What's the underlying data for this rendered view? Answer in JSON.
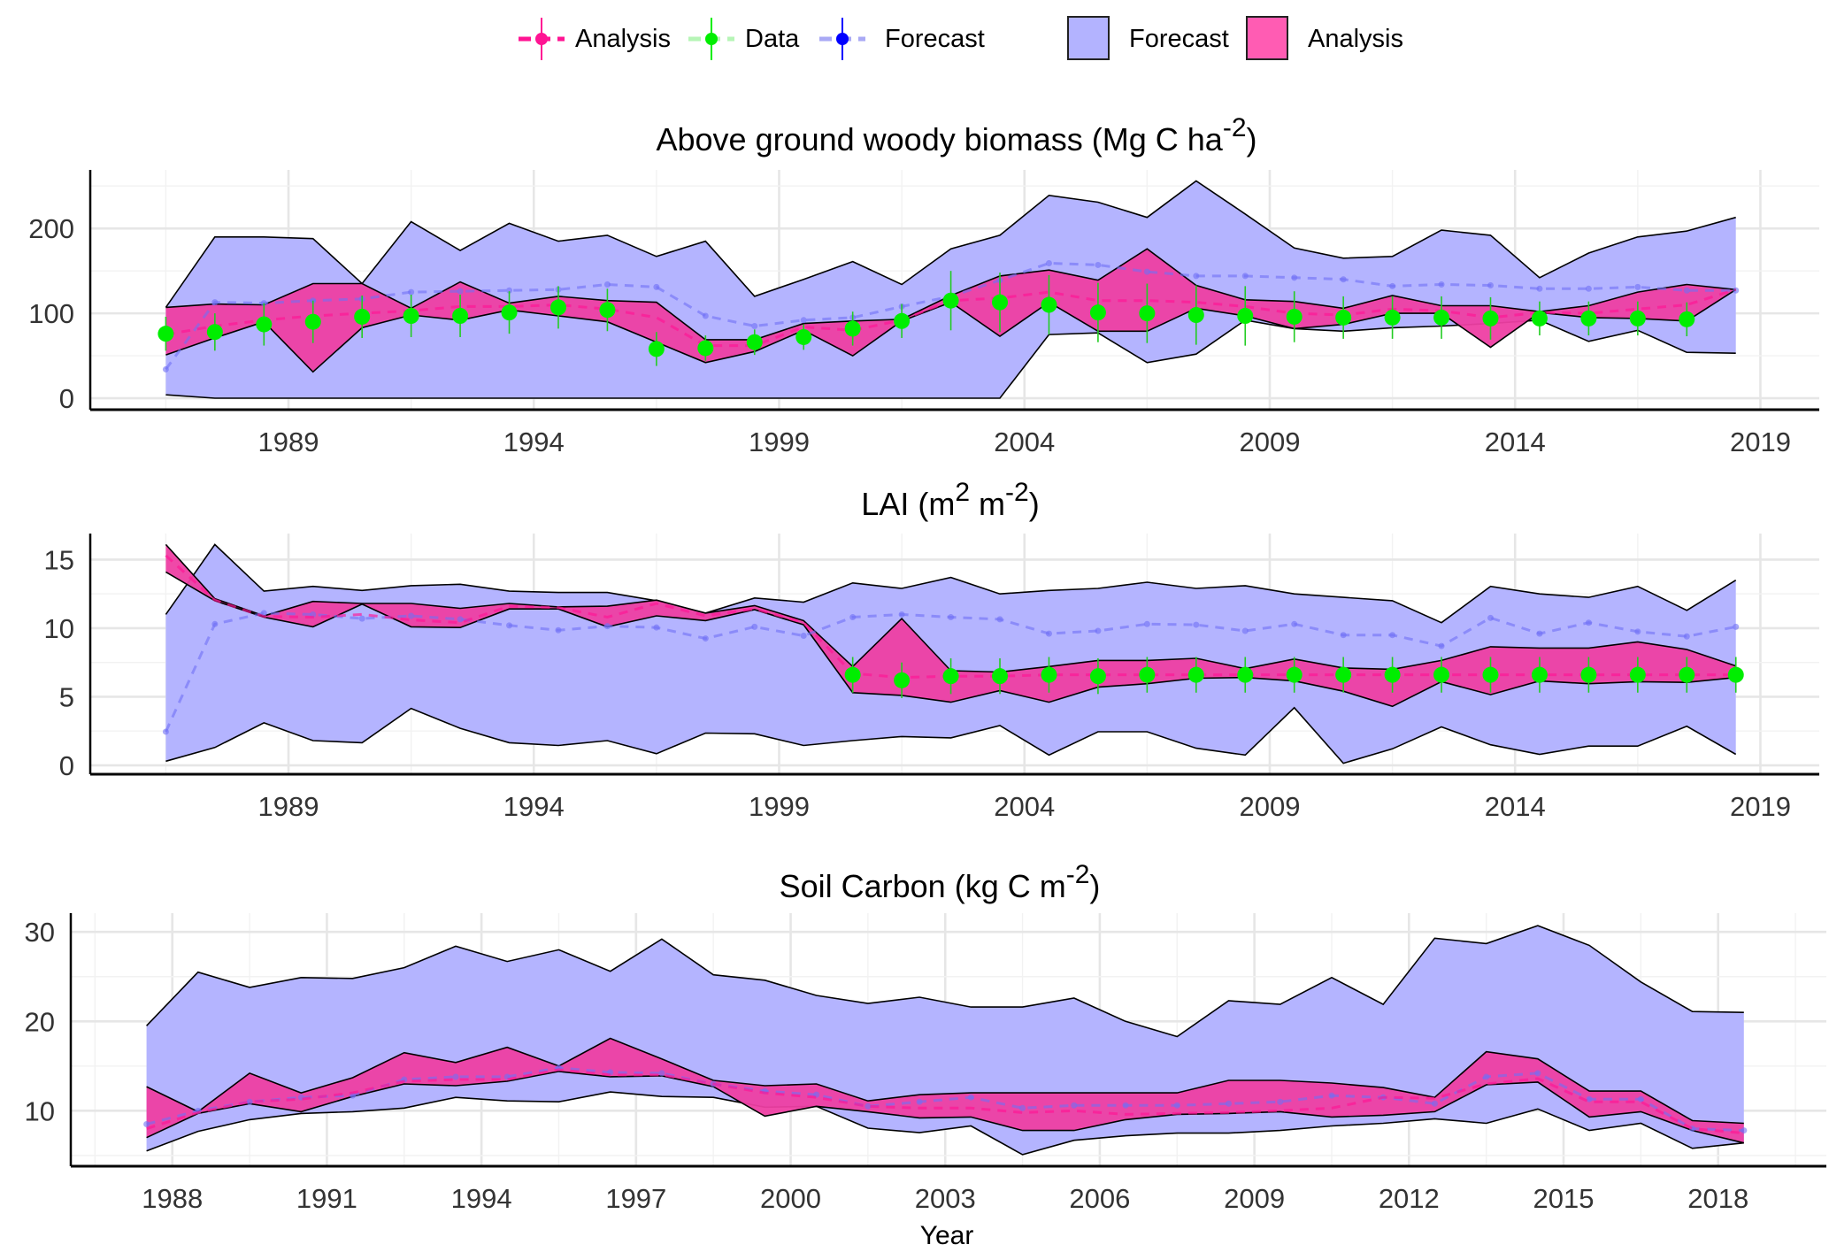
{
  "legend": {
    "lines": [
      {
        "label": "Analysis",
        "color": "#ff1493"
      },
      {
        "label": "Data",
        "color": "#00ee00"
      },
      {
        "label": "Forecast",
        "color": "#0000ff"
      }
    ],
    "fills": [
      {
        "label": "Forecast",
        "color": "#b3b3ff"
      },
      {
        "label": "Analysis",
        "color": "#ff5cb3"
      }
    ]
  },
  "colors": {
    "forecast_fill": "#b3b3ff",
    "analysis_fill": "#ee3fa3",
    "analysis_line": "#ff1493",
    "forecast_line": "#6f6ff5",
    "data": "#00ee00",
    "data_err": "#22cc22"
  },
  "chart_data": [
    {
      "type": "area",
      "title": [
        {
          "t": "Above ground woody biomass (Mg C ha",
          "sup": false
        },
        {
          "t": "-2",
          "sup": true
        },
        {
          "t": ")",
          "sup": false
        }
      ],
      "xlabel": "",
      "ylabel": "",
      "xlim": [
        1984.96,
        2020.2
      ],
      "ylim": [
        -13.5,
        269
      ],
      "xticks": [
        1989,
        1994,
        1999,
        2004,
        2009,
        2014,
        2019
      ],
      "yticks": [
        0,
        100,
        200
      ],
      "grid": true,
      "x_start": 1986.5,
      "forecast_upper": [
        107,
        190,
        190,
        188,
        135,
        208,
        174,
        206,
        185,
        192,
        167,
        185,
        120,
        140,
        161,
        134,
        176,
        192,
        239,
        231,
        213,
        256,
        217,
        177,
        165,
        167,
        198,
        192,
        142,
        171,
        190,
        197,
        213
      ],
      "forecast_lower": [
        4,
        0,
        0,
        0,
        0,
        0,
        0,
        0,
        0,
        0,
        0,
        0,
        0,
        0,
        0,
        0,
        0,
        0,
        75,
        77,
        42,
        52,
        92,
        82,
        79,
        83,
        85,
        88,
        92,
        67,
        80,
        54,
        53
      ],
      "forecast_mean": [
        34,
        113,
        112,
        115,
        117,
        125,
        126,
        127,
        128,
        134,
        131,
        97,
        85,
        92,
        95,
        108,
        120,
        139,
        159,
        157,
        149,
        144,
        144,
        142,
        140,
        132,
        134,
        133,
        129,
        129,
        131,
        127,
        127
      ],
      "analysis_upper": [
        107,
        111,
        110,
        135,
        135,
        106,
        137,
        112,
        120,
        115,
        113,
        69,
        69,
        88,
        91,
        93,
        121,
        144,
        151,
        139,
        176,
        133,
        116,
        114,
        106,
        121,
        109,
        109,
        102,
        109,
        125,
        134,
        128
      ],
      "analysis_lower": [
        51,
        71,
        90,
        31,
        83,
        98,
        92,
        104,
        97,
        90,
        66,
        42,
        55,
        80,
        50,
        91,
        113,
        73,
        113,
        79,
        79,
        106,
        97,
        82,
        87,
        100,
        100,
        60,
        101,
        95,
        94,
        91,
        128
      ],
      "analysis_mean": [
        75,
        85,
        92,
        97,
        100,
        103,
        108,
        108,
        110,
        105,
        95,
        62,
        62,
        84,
        80,
        92,
        115,
        118,
        125,
        115,
        115,
        113,
        108,
        100,
        98,
        105,
        103,
        95,
        101,
        100,
        105,
        110,
        128
      ],
      "data": [
        76,
        78,
        87,
        90,
        96,
        97,
        97,
        101,
        107,
        104,
        58,
        59,
        66,
        72,
        82,
        91,
        115,
        113,
        110,
        101,
        100,
        98,
        97,
        96,
        95,
        95,
        95,
        94,
        94,
        94,
        94,
        93,
        null
      ],
      "data_err": [
        20,
        22,
        25,
        25,
        25,
        25,
        25,
        25,
        25,
        25,
        20,
        15,
        15,
        15,
        20,
        20,
        35,
        35,
        35,
        35,
        35,
        35,
        35,
        30,
        25,
        25,
        25,
        25,
        20,
        20,
        20,
        20,
        null
      ]
    },
    {
      "type": "area",
      "title": [
        {
          "t": "LAI (m",
          "sup": false
        },
        {
          "t": "2",
          "sup": true
        },
        {
          "t": " m",
          "sup": false
        },
        {
          "t": "-2",
          "sup": true
        },
        {
          "t": ")",
          "sup": false
        }
      ],
      "xlabel": "",
      "ylabel": "",
      "xlim": [
        1984.96,
        2020.2
      ],
      "ylim": [
        -0.65,
        16.9
      ],
      "xticks": [
        1989,
        1994,
        1999,
        2004,
        2009,
        2014,
        2019
      ],
      "yticks": [
        0,
        5,
        10,
        15
      ],
      "grid": true,
      "x_start": 1986.5,
      "forecast_upper": [
        11,
        16.1,
        12.7,
        13.05,
        12.75,
        13.1,
        13.2,
        12.7,
        12.6,
        12.6,
        12.0,
        11.1,
        12.2,
        11.9,
        13.3,
        12.9,
        13.7,
        12.5,
        12.75,
        12.9,
        13.35,
        12.9,
        13.1,
        12.5,
        12.25,
        12.0,
        10.4,
        13.05,
        12.5,
        12.25,
        13.05,
        11.3,
        13.5
      ],
      "forecast_lower": [
        0.3,
        1.3,
        3.1,
        1.8,
        1.65,
        4.15,
        2.7,
        1.65,
        1.45,
        1.8,
        0.85,
        2.35,
        2.3,
        1.45,
        1.8,
        2.1,
        2.0,
        2.9,
        0.75,
        2.45,
        2.45,
        1.25,
        0.75,
        4.2,
        0.15,
        1.2,
        2.8,
        1.5,
        0.8,
        1.4,
        1.4,
        2.85,
        0.8
      ],
      "forecast_mean": [
        2.45,
        10.3,
        11.1,
        11.0,
        10.7,
        10.9,
        10.65,
        10.2,
        9.85,
        10.15,
        10.05,
        9.25,
        10.1,
        9.45,
        10.8,
        11.0,
        10.8,
        10.65,
        9.6,
        9.8,
        10.3,
        10.25,
        9.8,
        10.3,
        9.5,
        9.5,
        8.7,
        10.75,
        9.6,
        10.4,
        9.75,
        9.4,
        10.1
      ],
      "analysis_upper": [
        16.1,
        12.15,
        10.9,
        11.95,
        11.8,
        11.8,
        11.45,
        11.8,
        11.55,
        11.6,
        12.05,
        11.1,
        11.65,
        10.55,
        7.2,
        10.7,
        6.9,
        6.8,
        7.2,
        7.65,
        7.65,
        7.8,
        7.05,
        7.75,
        7.1,
        7.0,
        7.65,
        8.65,
        8.55,
        8.55,
        9.0,
        8.45,
        7.25
      ],
      "analysis_lower": [
        14.1,
        12.0,
        10.8,
        10.1,
        11.75,
        10.1,
        10.05,
        11.4,
        11.4,
        10.1,
        10.9,
        10.55,
        11.35,
        10.25,
        5.3,
        5.1,
        4.6,
        5.45,
        4.6,
        5.7,
        5.95,
        6.35,
        6.4,
        6.15,
        5.4,
        4.3,
        6.1,
        5.15,
        6.15,
        5.95,
        6.1,
        6.05,
        6.4
      ],
      "analysis_mean": [
        15.3,
        12.05,
        10.85,
        10.8,
        11.0,
        10.6,
        10.4,
        11.6,
        11.5,
        10.8,
        11.8,
        10.9,
        11.4,
        10.4,
        6.7,
        6.4,
        6.5,
        6.5,
        6.6,
        6.6,
        6.6,
        6.6,
        6.6,
        6.6,
        6.6,
        6.6,
        6.6,
        6.6,
        6.6,
        6.6,
        6.6,
        6.6,
        6.6
      ],
      "data": [
        null,
        null,
        null,
        null,
        null,
        null,
        null,
        null,
        null,
        null,
        null,
        null,
        null,
        null,
        6.6,
        6.2,
        6.5,
        6.5,
        6.6,
        6.5,
        6.6,
        6.6,
        6.6,
        6.6,
        6.6,
        6.6,
        6.6,
        6.6,
        6.6,
        6.6,
        6.6,
        6.6,
        6.6
      ],
      "data_err": [
        null,
        null,
        null,
        null,
        null,
        null,
        null,
        null,
        null,
        null,
        null,
        null,
        null,
        null,
        1.3,
        1.3,
        1.3,
        1.3,
        1.3,
        1.3,
        1.3,
        1.3,
        1.3,
        1.3,
        1.3,
        1.3,
        1.3,
        1.3,
        1.3,
        1.3,
        1.3,
        1.3,
        1.3
      ]
    },
    {
      "type": "area",
      "title": [
        {
          "t": "Soil Carbon (kg C m",
          "sup": false
        },
        {
          "t": "-2",
          "sup": true
        },
        {
          "t": ")",
          "sup": false
        }
      ],
      "xlabel": "Year",
      "ylabel": "",
      "xlim": [
        1986.03,
        2020.1
      ],
      "ylim": [
        3.8,
        32.1
      ],
      "xticks": [
        1988,
        1991,
        1994,
        1997,
        2000,
        2003,
        2006,
        2009,
        2012,
        2015,
        2018
      ],
      "yticks": [
        10,
        20,
        30
      ],
      "grid": true,
      "x_start": 1987.5,
      "forecast_upper": [
        19.5,
        25.5,
        23.8,
        24.9,
        24.8,
        26.0,
        28.4,
        26.7,
        28.0,
        25.6,
        29.2,
        25.2,
        24.6,
        22.9,
        22.0,
        22.7,
        21.6,
        21.6,
        22.6,
        20.0,
        18.3,
        22.3,
        21.9,
        24.9,
        21.9,
        29.3,
        28.7,
        30.7,
        28.5,
        24.4,
        21.1,
        21.0
      ],
      "forecast_lower": [
        5.5,
        7.7,
        9.0,
        9.7,
        9.9,
        10.3,
        11.5,
        11.1,
        11.0,
        12.1,
        11.6,
        11.5,
        10.4,
        10.5,
        8.05,
        7.55,
        8.3,
        5.1,
        6.7,
        7.2,
        7.5,
        7.5,
        7.8,
        8.3,
        8.6,
        9.1,
        8.6,
        10.2,
        7.8,
        8.6,
        5.8,
        6.4
      ],
      "forecast_mean": [
        8.5,
        10,
        11,
        11.5,
        11.7,
        13.5,
        13.8,
        13.8,
        14.8,
        14.3,
        14.2,
        13,
        12.2,
        11.8,
        10.5,
        11,
        11.5,
        10.3,
        10.6,
        10.6,
        10.6,
        10.8,
        11,
        11.7,
        11.5,
        10.8,
        13.8,
        14.2,
        11.3,
        11.3,
        8,
        7.8
      ],
      "analysis_upper": [
        12.7,
        9.9,
        14.2,
        12.0,
        13.7,
        16.5,
        15.4,
        17.1,
        15.0,
        18.1,
        15.8,
        13.4,
        12.8,
        13.0,
        11.1,
        11.8,
        12.0,
        12.0,
        12.0,
        12.0,
        12.0,
        13.4,
        13.4,
        13.1,
        12.6,
        11.5,
        16.6,
        15.8,
        12.2,
        12.2,
        8.9,
        8.6
      ],
      "analysis_lower": [
        7.0,
        9.7,
        10.8,
        9.9,
        11.6,
        13.0,
        12.8,
        13.3,
        14.4,
        13.8,
        13.9,
        12.7,
        9.4,
        10.5,
        9.9,
        9.2,
        9.3,
        7.8,
        7.8,
        9.0,
        9.6,
        9.7,
        9.9,
        9.3,
        9.5,
        9.9,
        12.9,
        13.2,
        9.3,
        9.9,
        7.8,
        6.4
      ],
      "analysis_mean": [
        8,
        9.8,
        11,
        11.3,
        12,
        13.3,
        13.5,
        13.5,
        14.6,
        14,
        14,
        13,
        12,
        11.5,
        10.5,
        10.3,
        10.3,
        9.8,
        10,
        9.6,
        9.7,
        9.8,
        10,
        10.3,
        11.5,
        11.4,
        13,
        13.6,
        11,
        11,
        8,
        7.5
      ],
      "data": [],
      "data_err": []
    }
  ]
}
